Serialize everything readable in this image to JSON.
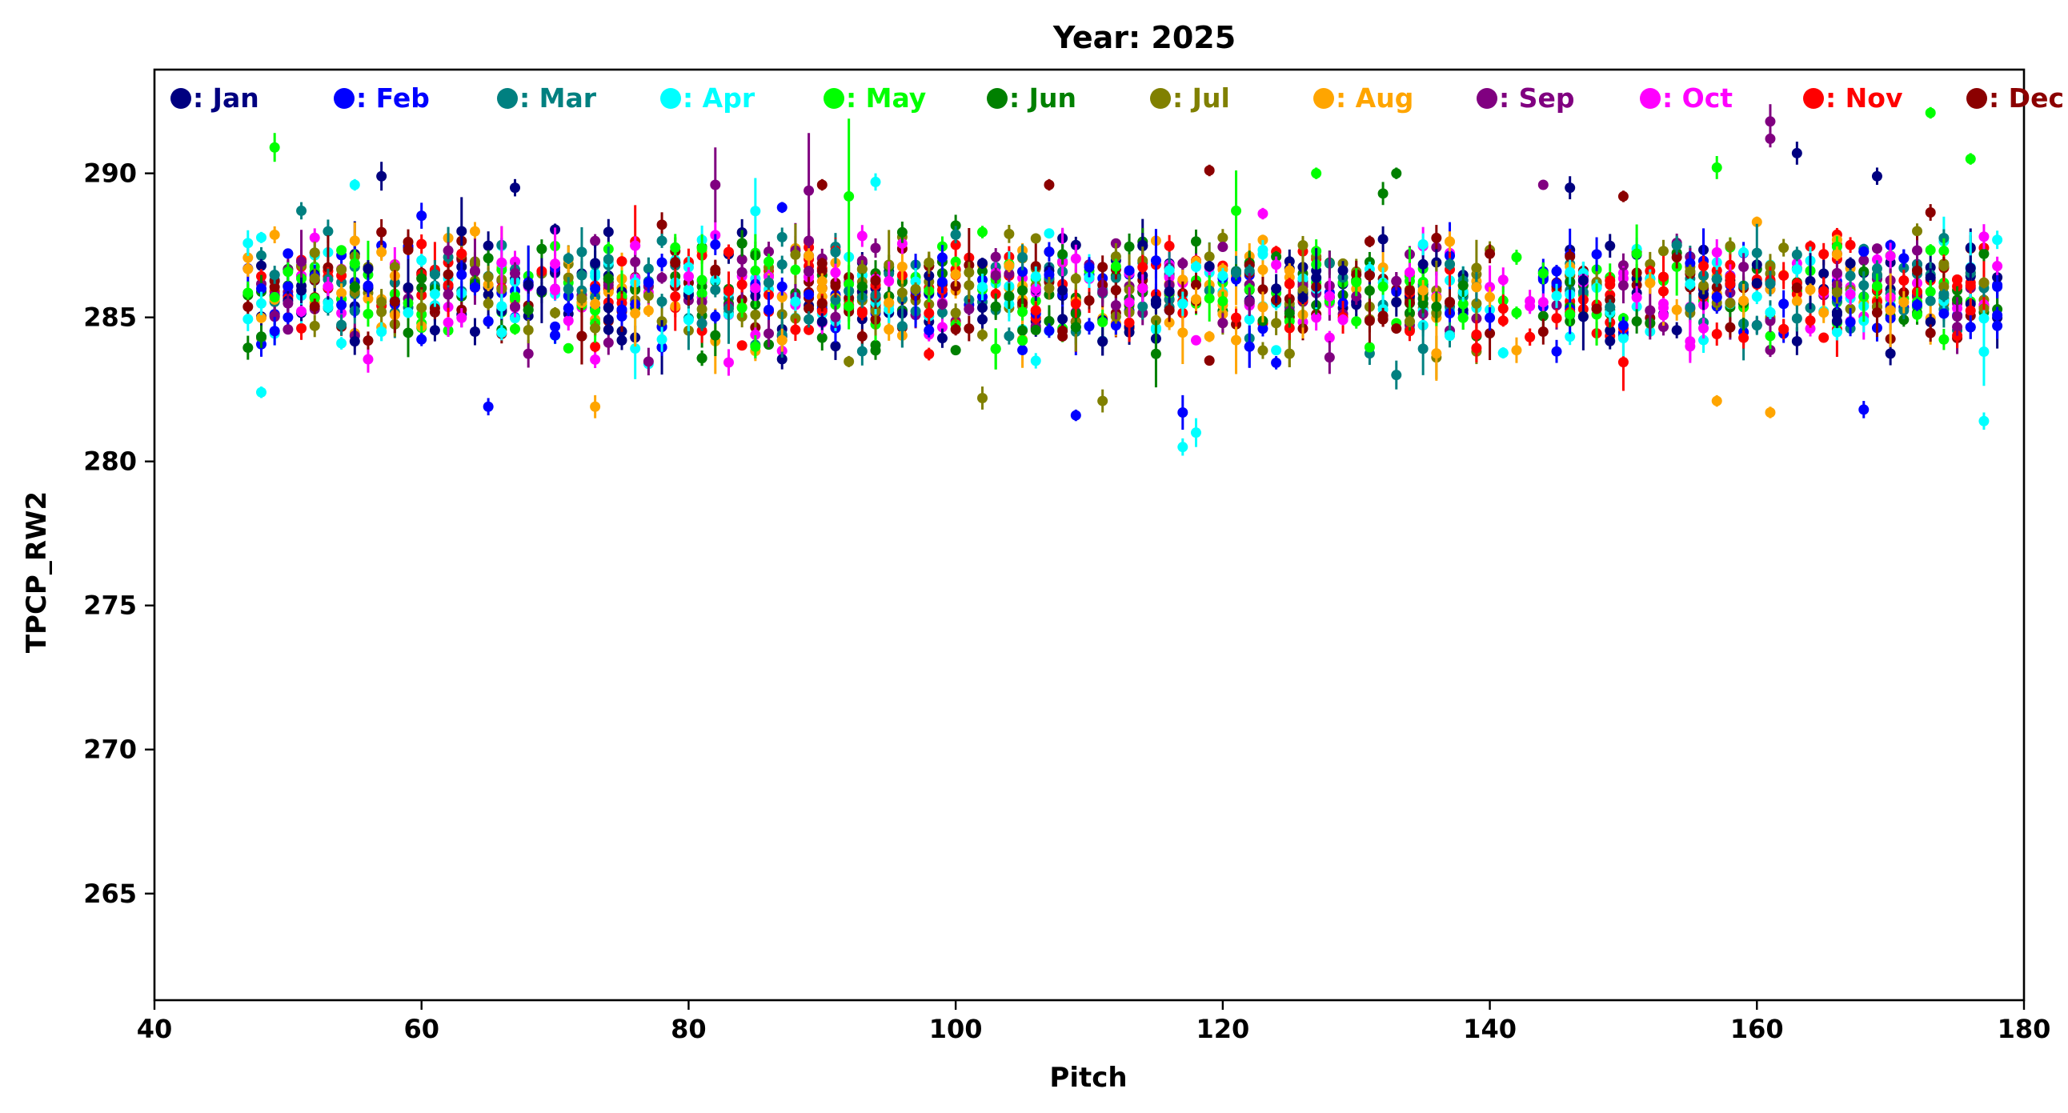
{
  "chart_data": {
    "type": "scatter",
    "title": "Year: 2025",
    "xlabel": "Pitch",
    "ylabel": "TPCP_RW2",
    "xlim": [
      40,
      180
    ],
    "ylim": [
      261.3,
      293.6
    ],
    "xticks": [
      40,
      60,
      80,
      100,
      120,
      140,
      160,
      180
    ],
    "yticks": [
      265,
      270,
      275,
      280,
      285,
      290
    ],
    "xtick_labels": [
      "40",
      "60",
      "80",
      "100",
      "120",
      "140",
      "160",
      "180"
    ],
    "ytick_labels": [
      "265",
      "270",
      "275",
      "280",
      "285",
      "290"
    ],
    "grid": false,
    "error_bars": true,
    "legend": {
      "placement": "top",
      "orientation": "horizontal"
    },
    "series": [
      {
        "label": ": Jan",
        "color": "#000080"
      },
      {
        "label": ": Feb",
        "color": "#0000FF"
      },
      {
        "label": ": Mar",
        "color": "#008080"
      },
      {
        "label": ": Apr",
        "color": "#00FFFF"
      },
      {
        "label": ": May",
        "color": "#00FF00"
      },
      {
        "label": ": Jun",
        "color": "#008000"
      },
      {
        "label": ": Jul",
        "color": "#808000"
      },
      {
        "label": ": Aug",
        "color": "#FFA500"
      },
      {
        "label": ": Sep",
        "color": "#800080"
      },
      {
        "label": ": Oct",
        "color": "#FF00FF"
      },
      {
        "label": ": Nov",
        "color": "#FF0000"
      },
      {
        "label": ": Dec",
        "color": "#8B0000"
      }
    ],
    "notable_points": [
      {
        "series": ": Jan",
        "x": 57,
        "y": 289.9,
        "err": 0.5
      },
      {
        "series": ": Jan",
        "x": 67,
        "y": 289.5,
        "err": 0.3
      },
      {
        "series": ": Jan",
        "x": 163,
        "y": 290.7,
        "err": 0.4
      },
      {
        "series": ": Jan",
        "x": 169,
        "y": 289.9,
        "err": 0.3
      },
      {
        "series": ": Jan",
        "x": 146,
        "y": 289.5,
        "err": 0.4
      },
      {
        "series": ": Feb",
        "x": 117,
        "y": 281.7,
        "err": 0.6
      },
      {
        "series": ": Feb",
        "x": 109,
        "y": 281.6,
        "err": 0.2
      },
      {
        "series": ": Feb",
        "x": 65,
        "y": 281.9,
        "err": 0.3
      },
      {
        "series": ": Feb",
        "x": 168,
        "y": 281.8,
        "err": 0.3
      },
      {
        "series": ": Mar",
        "x": 51,
        "y": 288.7,
        "err": 0.3
      },
      {
        "series": ": Mar",
        "x": 133,
        "y": 283.0,
        "err": 0.5
      },
      {
        "series": ": Apr",
        "x": 117,
        "y": 280.5,
        "err": 0.3
      },
      {
        "series": ": Apr",
        "x": 118,
        "y": 281.0,
        "err": 0.5
      },
      {
        "series": ": Apr",
        "x": 177,
        "y": 281.4,
        "err": 0.3
      },
      {
        "series": ": Apr",
        "x": 94,
        "y": 289.7,
        "err": 0.3
      },
      {
        "series": ": Apr",
        "x": 55,
        "y": 289.6,
        "err": 0.2
      },
      {
        "series": ": Apr",
        "x": 48,
        "y": 282.4,
        "err": 0.2
      },
      {
        "series": ": May",
        "x": 49,
        "y": 290.9,
        "err": 0.5
      },
      {
        "series": ": May",
        "x": 92,
        "y": 289.2,
        "err": 2.7
      },
      {
        "series": ": May",
        "x": 121,
        "y": 288.7,
        "err": 1.4
      },
      {
        "series": ": May",
        "x": 127,
        "y": 290.0,
        "err": 0.2
      },
      {
        "series": ": May",
        "x": 157,
        "y": 290.2,
        "err": 0.4
      },
      {
        "series": ": May",
        "x": 173,
        "y": 292.1,
        "err": 0.2
      },
      {
        "series": ": May",
        "x": 176,
        "y": 290.5,
        "err": 0.2
      },
      {
        "series": ": Jun",
        "x": 133,
        "y": 290.0,
        "err": 0.2
      },
      {
        "series": ": Jun",
        "x": 132,
        "y": 289.3,
        "err": 0.4
      },
      {
        "series": ": Jul",
        "x": 111,
        "y": 282.1,
        "err": 0.4
      },
      {
        "series": ": Jul",
        "x": 102,
        "y": 282.2,
        "err": 0.4
      },
      {
        "series": ": Aug",
        "x": 73,
        "y": 281.9,
        "err": 0.4
      },
      {
        "series": ": Aug",
        "x": 161,
        "y": 281.7,
        "err": 0.2
      },
      {
        "series": ": Aug",
        "x": 157,
        "y": 282.1,
        "err": 0.2
      },
      {
        "series": ": Sep",
        "x": 89,
        "y": 289.4,
        "err": 2.0
      },
      {
        "series": ": Sep",
        "x": 82,
        "y": 289.6,
        "err": 1.3
      },
      {
        "series": ": Sep",
        "x": 161,
        "y": 291.8,
        "err": 0.6
      },
      {
        "series": ": Sep",
        "x": 161,
        "y": 291.2,
        "err": 0.3
      },
      {
        "series": ": Sep",
        "x": 144,
        "y": 289.6,
        "err": 0.1
      },
      {
        "series": ": Oct",
        "x": 123,
        "y": 288.6,
        "err": 0.2
      },
      {
        "series": ": Nov",
        "x": 139,
        "y": 284.4,
        "err": 0.5
      },
      {
        "series": ": Dec",
        "x": 107,
        "y": 289.6,
        "err": 0.2
      },
      {
        "series": ": Dec",
        "x": 119,
        "y": 290.1,
        "err": 0.2
      },
      {
        "series": ": Dec",
        "x": 150,
        "y": 289.2,
        "err": 0.2
      },
      {
        "series": ": Dec",
        "x": 90,
        "y": 289.6,
        "err": 0.2
      }
    ],
    "main_cluster": {
      "x_range": [
        47,
        178
      ],
      "y_range": [
        283,
        289
      ],
      "y_center": 285.9,
      "gap_x_range": [
        140,
        144
      ]
    }
  }
}
